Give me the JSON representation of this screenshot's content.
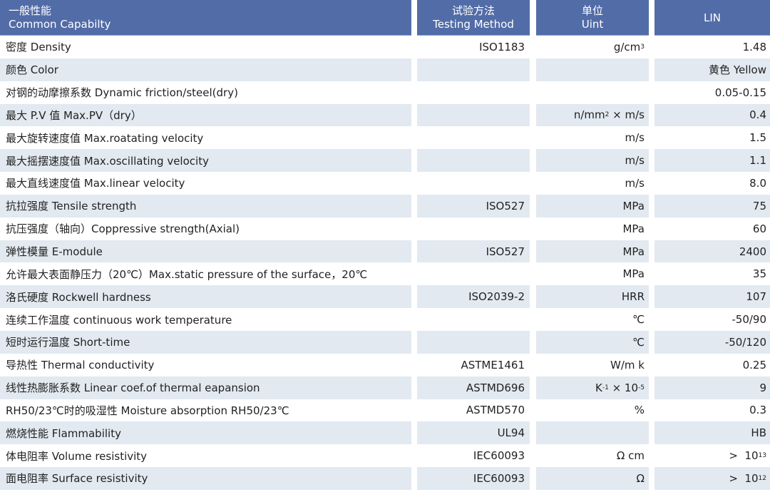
{
  "header": {
    "property_cn": "一般性能",
    "property_en": "Common Capabilty",
    "method_cn": "试验方法",
    "method_en": "Testing Method",
    "unit_cn": "单位",
    "unit_en": "Uint",
    "material": "LIN"
  },
  "colors": {
    "header_bg": "#526ca8",
    "stripe_bg": "#e2e9f0"
  },
  "rows": [
    {
      "property": "密度 Density",
      "method": "ISO1183",
      "unit": [
        {
          "t": "g/cm"
        },
        {
          "s": "3"
        }
      ],
      "value": [
        {
          "t": "1.48"
        }
      ]
    },
    {
      "property": "颜色 Color",
      "method": "",
      "unit": [],
      "value": [
        {
          "t": "黄色 Yellow"
        }
      ]
    },
    {
      "property": "对钢的动摩擦系数 Dynamic friction/steel(dry)",
      "method": "",
      "unit": [],
      "value": [
        {
          "t": "0.05-0.15"
        }
      ]
    },
    {
      "property": "最大 P.V 值 Max.PV（dry）",
      "method": "",
      "unit": [
        {
          "t": "n/mm"
        },
        {
          "s": "2"
        },
        {
          "t": " × m/s"
        }
      ],
      "value": [
        {
          "t": "0.4"
        }
      ]
    },
    {
      "property": "最大旋转速度值 Max.roatating velocity",
      "method": "",
      "unit": [
        {
          "t": "m/s"
        }
      ],
      "value": [
        {
          "t": "1.5"
        }
      ]
    },
    {
      "property": "最大摇摆速度值 Max.oscillating velocity",
      "method": "",
      "unit": [
        {
          "t": "m/s"
        }
      ],
      "value": [
        {
          "t": "1.1"
        }
      ]
    },
    {
      "property": "最大直线速度值 Max.linear velocity",
      "method": "",
      "unit": [
        {
          "t": "m/s"
        }
      ],
      "value": [
        {
          "t": "8.0"
        }
      ]
    },
    {
      "property": "抗拉强度 Tensile strength",
      "method": "ISO527",
      "unit": [
        {
          "t": "MPa"
        }
      ],
      "value": [
        {
          "t": "75"
        }
      ]
    },
    {
      "property": "抗压强度（轴向）Coppressive strength(Axial)",
      "method": "",
      "unit": [
        {
          "t": "MPa"
        }
      ],
      "value": [
        {
          "t": "60"
        }
      ]
    },
    {
      "property": "弹性模量 E-module",
      "method": "ISO527",
      "unit": [
        {
          "t": "MPa"
        }
      ],
      "value": [
        {
          "t": "2400"
        }
      ]
    },
    {
      "property": "允许最大表面静压力（20℃）Max.static pressure of the surface，20℃",
      "method": "",
      "unit": [
        {
          "t": "MPa"
        }
      ],
      "value": [
        {
          "t": "35"
        }
      ]
    },
    {
      "property": "洛氏硬度 Rockwell hardness",
      "method": "ISO2039-2",
      "unit": [
        {
          "t": "HRR"
        }
      ],
      "value": [
        {
          "t": "107"
        }
      ]
    },
    {
      "property": "连续工作温度 continuous work temperature",
      "method": "",
      "unit": [
        {
          "t": "℃"
        }
      ],
      "value": [
        {
          "t": "-50/90"
        }
      ]
    },
    {
      "property": "短时运行温度 Short-time",
      "method": "",
      "unit": [
        {
          "t": "℃"
        }
      ],
      "value": [
        {
          "t": "-50/120"
        }
      ]
    },
    {
      "property": "导热性 Thermal conductivity",
      "method": "ASTME1461",
      "unit": [
        {
          "t": "W/m k"
        }
      ],
      "value": [
        {
          "t": "0.25"
        }
      ]
    },
    {
      "property": "线性热膨胀系数 Linear coef.of thermal eapansion",
      "method": "ASTMD696",
      "unit": [
        {
          "t": "K"
        },
        {
          "s": "-1"
        },
        {
          "t": " × 10"
        },
        {
          "s": "-5"
        }
      ],
      "value": [
        {
          "t": "9"
        }
      ]
    },
    {
      "property": "RH50/23℃时的吸湿性 Moisture absorption RH50/23℃",
      "method": "ASTMD570",
      "unit": [
        {
          "t": "%"
        }
      ],
      "value": [
        {
          "t": "0.3"
        }
      ]
    },
    {
      "property": "燃烧性能 Flammability",
      "method": "UL94",
      "unit": [],
      "value": [
        {
          "t": "HB"
        }
      ]
    },
    {
      "property": "体电阻率 Volume resistivity",
      "method": "IEC60093",
      "unit": [
        {
          "t": "Ω cm"
        }
      ],
      "value": [
        {
          "t": ">  10"
        },
        {
          "s": "13"
        }
      ]
    },
    {
      "property": "面电阻率 Surface resistivity",
      "method": "IEC60093",
      "unit": [
        {
          "t": "Ω"
        }
      ],
      "value": [
        {
          "t": ">  10"
        },
        {
          "s": "12"
        }
      ]
    }
  ]
}
